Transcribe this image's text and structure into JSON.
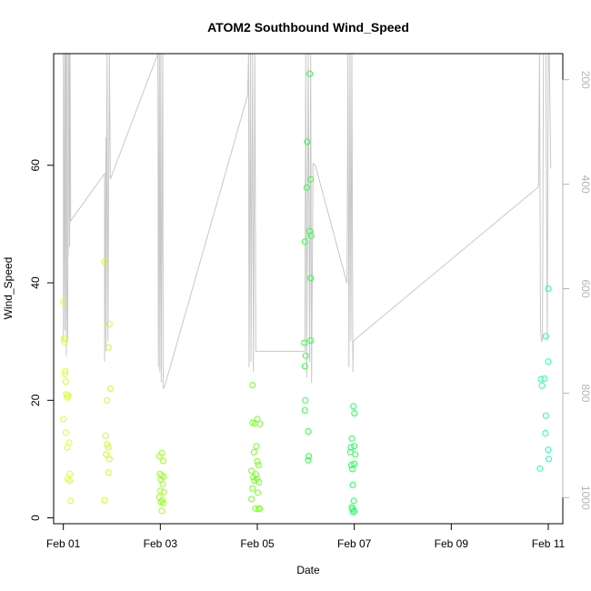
{
  "chart_data": {
    "type": "scatter",
    "title": "ATOM2 Southbound Wind_Speed",
    "xlabel": "Date",
    "ylabel": "Wind_Speed",
    "x_unit": "days",
    "xlim": [
      -0.2,
      10.3
    ],
    "ylim": [
      -1,
      79
    ],
    "x_ticks": [
      {
        "value": 0,
        "label": "Feb 01"
      },
      {
        "value": 2,
        "label": "Feb 03"
      },
      {
        "value": 4,
        "label": "Feb 05"
      },
      {
        "value": 6,
        "label": "Feb 07"
      },
      {
        "value": 8,
        "label": "Feb 09"
      },
      {
        "value": 10,
        "label": "Feb 11"
      }
    ],
    "y_ticks": [
      0,
      20,
      40,
      60
    ],
    "right_axis": {
      "ticks": [
        200,
        400,
        600,
        800,
        1000
      ],
      "lim": [
        1050,
        150
      ],
      "color": "#b4b4b4"
    },
    "grid": false,
    "legend": "none",
    "points": [
      {
        "x": 0.0,
        "y": 36.8,
        "color": "#ddff1f"
      },
      {
        "x": 0.01,
        "y": 30.5,
        "color": "#ddff1f"
      },
      {
        "x": 0.02,
        "y": 30.0,
        "color": "#ddff1f"
      },
      {
        "x": 0.03,
        "y": 24.5,
        "color": "#ddff1f"
      },
      {
        "x": 0.04,
        "y": 25.0,
        "color": "#ddff1f"
      },
      {
        "x": 0.05,
        "y": 23.2,
        "color": "#ddff1f"
      },
      {
        "x": 0.06,
        "y": 21.0,
        "color": "#ddff1f"
      },
      {
        "x": 0.08,
        "y": 20.5,
        "color": "#ddff1f"
      },
      {
        "x": 0.1,
        "y": 20.8,
        "color": "#ddff1f"
      },
      {
        "x": 0.0,
        "y": 16.8,
        "color": "#ddff1f"
      },
      {
        "x": 0.05,
        "y": 14.5,
        "color": "#ddff1f"
      },
      {
        "x": 0.12,
        "y": 12.8,
        "color": "#ddff1f"
      },
      {
        "x": 0.08,
        "y": 12.0,
        "color": "#ddff1f"
      },
      {
        "x": 0.13,
        "y": 7.5,
        "color": "#ddff1f"
      },
      {
        "x": 0.09,
        "y": 6.6,
        "color": "#ddff1f"
      },
      {
        "x": 0.13,
        "y": 6.3,
        "color": "#ddff1f"
      },
      {
        "x": 0.15,
        "y": 2.9,
        "color": "#ddff1f"
      },
      {
        "x": 0.85,
        "y": 43.6,
        "color": "#c8ff1f"
      },
      {
        "x": 0.95,
        "y": 33.0,
        "color": "#c8ff1f"
      },
      {
        "x": 0.93,
        "y": 29.0,
        "color": "#c8ff1f"
      },
      {
        "x": 0.97,
        "y": 22.0,
        "color": "#c8ff1f"
      },
      {
        "x": 0.9,
        "y": 20.0,
        "color": "#c8ff1f"
      },
      {
        "x": 0.87,
        "y": 14.0,
        "color": "#c8ff1f"
      },
      {
        "x": 0.9,
        "y": 12.5,
        "color": "#c8ff1f"
      },
      {
        "x": 0.93,
        "y": 12.0,
        "color": "#c8ff1f"
      },
      {
        "x": 0.88,
        "y": 10.8,
        "color": "#c8ff1f"
      },
      {
        "x": 0.95,
        "y": 10.0,
        "color": "#c8ff1f"
      },
      {
        "x": 0.93,
        "y": 7.7,
        "color": "#c8ff1f"
      },
      {
        "x": 0.85,
        "y": 3.0,
        "color": "#c8ff1f"
      },
      {
        "x": 1.98,
        "y": 10.5,
        "color": "#9cff1f"
      },
      {
        "x": 2.03,
        "y": 11.0,
        "color": "#9cff1f"
      },
      {
        "x": 2.06,
        "y": 9.7,
        "color": "#9cff1f"
      },
      {
        "x": 1.99,
        "y": 7.5,
        "color": "#9cff1f"
      },
      {
        "x": 2.03,
        "y": 7.2,
        "color": "#9cff1f"
      },
      {
        "x": 2.07,
        "y": 7.0,
        "color": "#9cff1f"
      },
      {
        "x": 2.01,
        "y": 6.5,
        "color": "#9cff1f"
      },
      {
        "x": 2.05,
        "y": 5.8,
        "color": "#9cff1f"
      },
      {
        "x": 2.0,
        "y": 4.6,
        "color": "#9cff1f"
      },
      {
        "x": 2.07,
        "y": 4.4,
        "color": "#9cff1f"
      },
      {
        "x": 1.98,
        "y": 3.5,
        "color": "#9cff1f"
      },
      {
        "x": 2.04,
        "y": 3.0,
        "color": "#9cff1f"
      },
      {
        "x": 2.01,
        "y": 2.7,
        "color": "#9cff1f"
      },
      {
        "x": 2.06,
        "y": 2.5,
        "color": "#9cff1f"
      },
      {
        "x": 2.03,
        "y": 1.2,
        "color": "#9cff1f"
      },
      {
        "x": 3.9,
        "y": 22.6,
        "color": "#73ff1f"
      },
      {
        "x": 3.9,
        "y": 16.2,
        "color": "#73ff1f"
      },
      {
        "x": 3.95,
        "y": 16.1,
        "color": "#73ff1f"
      },
      {
        "x": 4.0,
        "y": 16.8,
        "color": "#73ff1f"
      },
      {
        "x": 4.05,
        "y": 16.0,
        "color": "#73ff1f"
      },
      {
        "x": 3.98,
        "y": 12.2,
        "color": "#73ff1f"
      },
      {
        "x": 3.93,
        "y": 11.2,
        "color": "#73ff1f"
      },
      {
        "x": 4.0,
        "y": 9.6,
        "color": "#73ff1f"
      },
      {
        "x": 4.02,
        "y": 9.0,
        "color": "#73ff1f"
      },
      {
        "x": 3.88,
        "y": 8.0,
        "color": "#73ff1f"
      },
      {
        "x": 3.97,
        "y": 7.4,
        "color": "#73ff1f"
      },
      {
        "x": 3.92,
        "y": 6.9,
        "color": "#73ff1f"
      },
      {
        "x": 3.99,
        "y": 6.6,
        "color": "#73ff1f"
      },
      {
        "x": 3.94,
        "y": 6.3,
        "color": "#73ff1f"
      },
      {
        "x": 4.03,
        "y": 6.1,
        "color": "#73ff1f"
      },
      {
        "x": 3.9,
        "y": 5.0,
        "color": "#73ff1f"
      },
      {
        "x": 4.01,
        "y": 4.3,
        "color": "#73ff1f"
      },
      {
        "x": 3.88,
        "y": 3.2,
        "color": "#73ff1f"
      },
      {
        "x": 3.96,
        "y": 1.6,
        "color": "#73ff1f"
      },
      {
        "x": 4.02,
        "y": 1.5,
        "color": "#73ff1f"
      },
      {
        "x": 4.05,
        "y": 1.6,
        "color": "#73ff1f"
      },
      {
        "x": 5.08,
        "y": 75.6,
        "color": "#2bff3e"
      },
      {
        "x": 5.03,
        "y": 64.0,
        "color": "#2bff3e"
      },
      {
        "x": 5.1,
        "y": 57.6,
        "color": "#2bff3e"
      },
      {
        "x": 5.02,
        "y": 56.2,
        "color": "#2bff3e"
      },
      {
        "x": 5.08,
        "y": 48.8,
        "color": "#2bff3e"
      },
      {
        "x": 5.11,
        "y": 48.0,
        "color": "#2bff3e"
      },
      {
        "x": 4.98,
        "y": 47.0,
        "color": "#2bff3e"
      },
      {
        "x": 5.1,
        "y": 40.8,
        "color": "#2bff3e"
      },
      {
        "x": 5.1,
        "y": 30.2,
        "color": "#2bff3e"
      },
      {
        "x": 4.97,
        "y": 29.8,
        "color": "#2bff3e"
      },
      {
        "x": 5.0,
        "y": 27.6,
        "color": "#2bff3e"
      },
      {
        "x": 4.98,
        "y": 25.8,
        "color": "#2bff3e"
      },
      {
        "x": 4.99,
        "y": 20.0,
        "color": "#2bff3e"
      },
      {
        "x": 4.98,
        "y": 18.3,
        "color": "#2bff3e"
      },
      {
        "x": 5.05,
        "y": 14.7,
        "color": "#2bff3e"
      },
      {
        "x": 5.06,
        "y": 10.5,
        "color": "#2bff3e"
      },
      {
        "x": 5.05,
        "y": 9.8,
        "color": "#2bff3e"
      },
      {
        "x": 5.98,
        "y": 19.0,
        "color": "#1fff58"
      },
      {
        "x": 6.0,
        "y": 17.8,
        "color": "#1fff58"
      },
      {
        "x": 5.95,
        "y": 13.5,
        "color": "#1fff58"
      },
      {
        "x": 5.93,
        "y": 12.0,
        "color": "#1fff58"
      },
      {
        "x": 6.0,
        "y": 12.2,
        "color": "#1fff58"
      },
      {
        "x": 5.92,
        "y": 11.2,
        "color": "#1fff58"
      },
      {
        "x": 6.02,
        "y": 10.8,
        "color": "#1fff58"
      },
      {
        "x": 5.94,
        "y": 9.0,
        "color": "#1fff58"
      },
      {
        "x": 5.96,
        "y": 8.3,
        "color": "#1fff58"
      },
      {
        "x": 6.0,
        "y": 9.2,
        "color": "#1fff58"
      },
      {
        "x": 5.97,
        "y": 5.6,
        "color": "#1fff58"
      },
      {
        "x": 5.99,
        "y": 2.9,
        "color": "#1fff58"
      },
      {
        "x": 5.95,
        "y": 1.8,
        "color": "#1fff58"
      },
      {
        "x": 5.96,
        "y": 1.5,
        "color": "#1fff58"
      },
      {
        "x": 6.0,
        "y": 1.2,
        "color": "#1fff58"
      },
      {
        "x": 5.97,
        "y": 1.0,
        "color": "#1fff58"
      },
      {
        "x": 10.0,
        "y": 39.0,
        "color": "#1fffb4"
      },
      {
        "x": 9.95,
        "y": 30.9,
        "color": "#1fffb4"
      },
      {
        "x": 10.0,
        "y": 26.6,
        "color": "#1fffb4"
      },
      {
        "x": 9.85,
        "y": 23.6,
        "color": "#1fffb4"
      },
      {
        "x": 9.92,
        "y": 23.7,
        "color": "#1fffb4"
      },
      {
        "x": 9.87,
        "y": 22.5,
        "color": "#1fffb4"
      },
      {
        "x": 9.95,
        "y": 17.4,
        "color": "#1fffb4"
      },
      {
        "x": 9.94,
        "y": 14.4,
        "color": "#1fffb4"
      },
      {
        "x": 10.0,
        "y": 11.6,
        "color": "#1fffb4"
      },
      {
        "x": 10.01,
        "y": 10.0,
        "color": "#1fffb4"
      },
      {
        "x": 9.83,
        "y": 8.4,
        "color": "#1fffb4"
      }
    ],
    "track_line": {
      "description_axis": "right",
      "color": "#c8c8c8",
      "points": [
        [
          0.0,
          150
        ],
        [
          0.0,
          700
        ],
        [
          0.03,
          150
        ],
        [
          0.03,
          680
        ],
        [
          0.05,
          150
        ],
        [
          0.06,
          730
        ],
        [
          0.07,
          150
        ],
        [
          0.07,
          560
        ],
        [
          0.09,
          700
        ],
        [
          0.1,
          150
        ],
        [
          0.1,
          540
        ],
        [
          0.12,
          150
        ],
        [
          0.13,
          520
        ],
        [
          0.14,
          150
        ],
        [
          0.15,
          470
        ],
        [
          0.85,
          380
        ],
        [
          0.85,
          740
        ],
        [
          0.88,
          310
        ],
        [
          0.88,
          720
        ],
        [
          0.9,
          150
        ],
        [
          0.92,
          700
        ],
        [
          0.95,
          150
        ],
        [
          0.97,
          390
        ],
        [
          1.95,
          150
        ],
        [
          1.96,
          750
        ],
        [
          1.98,
          150
        ],
        [
          1.99,
          760
        ],
        [
          2.01,
          150
        ],
        [
          2.02,
          780
        ],
        [
          2.05,
          150
        ],
        [
          2.06,
          790
        ],
        [
          2.08,
          790
        ],
        [
          3.8,
          230
        ],
        [
          3.82,
          150
        ],
        [
          3.83,
          750
        ],
        [
          3.86,
          150
        ],
        [
          3.87,
          740
        ],
        [
          3.9,
          150
        ],
        [
          3.92,
          760
        ],
        [
          3.95,
          150
        ],
        [
          3.97,
          720
        ],
        [
          4.98,
          720
        ],
        [
          5.0,
          150
        ],
        [
          5.02,
          770
        ],
        [
          5.05,
          150
        ],
        [
          5.08,
          740
        ],
        [
          5.1,
          150
        ],
        [
          5.12,
          780
        ],
        [
          5.15,
          360
        ],
        [
          5.2,
          365
        ],
        [
          5.85,
          590
        ],
        [
          5.87,
          150
        ],
        [
          5.89,
          750
        ],
        [
          5.91,
          150
        ],
        [
          5.93,
          700
        ],
        [
          5.95,
          150
        ],
        [
          5.97,
          760
        ],
        [
          5.98,
          700
        ],
        [
          9.8,
          405
        ],
        [
          9.82,
          150
        ],
        [
          9.84,
          680
        ],
        [
          9.86,
          700
        ],
        [
          9.88,
          700
        ],
        [
          9.9,
          150
        ],
        [
          9.95,
          150
        ],
        [
          9.98,
          700
        ],
        [
          10.0,
          150
        ],
        [
          10.02,
          150
        ],
        [
          10.05,
          370
        ]
      ]
    }
  }
}
